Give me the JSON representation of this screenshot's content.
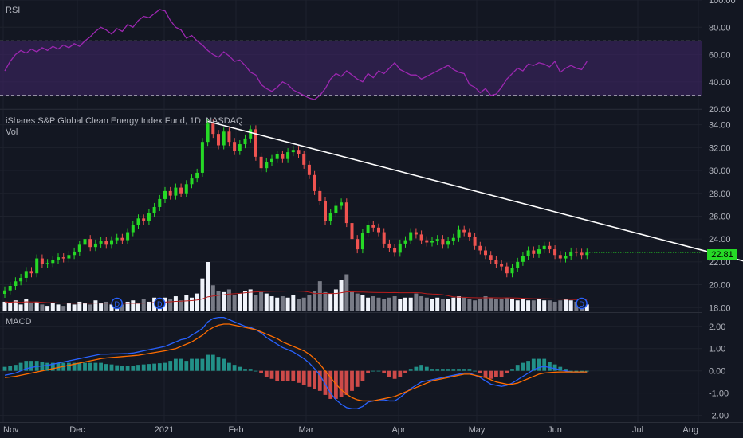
{
  "symbol_title": "iShares S&P Global Clean Energy Index Fund, 1D, NASDAQ",
  "volume_label": "Vol",
  "rsi_label": "RSI",
  "macd_label": "MACD",
  "last_price_label": "22.81",
  "colors": {
    "background": "#131722",
    "grid": "#1e222d",
    "up": "#26d926",
    "down": "#ef5350",
    "rsi_line": "#9c27b0",
    "rsi_band": "#3a2360",
    "macd_line": "#2962ff",
    "signal_line": "#ff6d00",
    "hist_up": "#26a69a",
    "hist_down": "#ef5350",
    "trendline": "#ffffff",
    "vol_ma": "#b71c1c"
  },
  "chart_data": [
    {
      "type": "line",
      "name": "RSI",
      "y_ticks": [
        "100.00",
        "80.00",
        "60.00",
        "40.00",
        "20.00"
      ],
      "ylim": [
        20,
        100
      ],
      "bands": [
        30,
        70
      ],
      "series": [
        {
          "values": [
            48,
            55,
            60,
            63,
            61,
            64,
            62,
            65,
            63,
            66,
            64,
            67,
            65,
            68,
            66,
            70,
            73,
            77,
            80,
            78,
            75,
            79,
            77,
            82,
            80,
            85,
            88,
            87,
            90,
            93,
            92,
            85,
            80,
            78,
            72,
            74,
            70,
            67,
            63,
            60,
            58,
            62,
            59,
            55,
            56,
            52,
            47,
            45,
            38,
            35,
            33,
            36,
            40,
            38,
            34,
            32,
            30,
            28,
            27,
            30,
            35,
            42,
            46,
            44,
            48,
            45,
            42,
            40,
            46,
            43,
            48,
            46,
            50,
            54,
            49,
            47,
            45,
            45,
            42,
            44,
            46,
            48,
            50,
            52,
            49,
            47,
            46,
            38,
            36,
            32,
            35,
            30,
            31,
            36,
            42,
            46,
            50,
            48,
            53,
            52,
            54,
            53,
            51,
            55,
            47,
            50,
            52,
            50,
            49,
            55
          ]
        }
      ]
    },
    {
      "type": "candlestick",
      "name": "iShares S&P Global Clean Energy Index Fund",
      "x_tick_labels": [
        "Nov",
        "Dec",
        "2021",
        "Feb",
        "Mar",
        "Apr",
        "May",
        "Jun",
        "Jul",
        "Aug"
      ],
      "y_ticks": [
        "34.00",
        "32.00",
        "30.00",
        "28.00",
        "26.00",
        "24.00",
        "22.00",
        "20.00",
        "18.00"
      ],
      "ylim": [
        17.6,
        35.3
      ],
      "close": [
        19.5,
        19.9,
        20.3,
        20.6,
        21.2,
        21.0,
        22.3,
        21.8,
        21.9,
        22.2,
        22.4,
        22.3,
        22.6,
        22.9,
        23.5,
        24.0,
        23.3,
        23.6,
        23.8,
        23.5,
        23.9,
        24.1,
        23.9,
        24.6,
        25.2,
        25.8,
        25.6,
        26.3,
        26.8,
        27.5,
        28.2,
        27.8,
        28.5,
        28.0,
        28.8,
        29.3,
        29.8,
        32.5,
        34.1,
        33.2,
        32.2,
        33.4,
        32.5,
        31.7,
        32.3,
        32.8,
        33.6,
        31.2,
        30.2,
        30.7,
        31.0,
        31.4,
        31.0,
        31.6,
        31.8,
        31.4,
        30.5,
        29.6,
        28.2,
        27.3,
        25.6,
        26.3,
        26.9,
        27.2,
        25.4,
        24.0,
        23.1,
        24.5,
        25.2,
        25.0,
        24.6,
        23.6,
        23.2,
        22.8,
        23.6,
        23.9,
        24.6,
        24.4,
        23.9,
        23.7,
        23.8,
        24.0,
        23.5,
        23.8,
        24.1,
        24.8,
        24.6,
        24.2,
        23.4,
        23.0,
        22.6,
        22.2,
        21.8,
        21.6,
        21.0,
        21.5,
        22.0,
        22.5,
        23.0,
        22.7,
        23.1,
        23.4,
        23.1,
        22.6,
        22.3,
        22.5,
        22.9,
        22.8,
        22.6,
        22.81
      ],
      "volume": [
        0.7,
        0.6,
        0.8,
        0.5,
        0.9,
        0.6,
        0.7,
        0.5,
        0.4,
        0.6,
        0.5,
        0.4,
        0.6,
        0.5,
        0.7,
        0.6,
        0.5,
        0.8,
        0.6,
        0.7,
        0.5,
        0.6,
        0.5,
        0.7,
        0.8,
        0.6,
        0.9,
        0.7,
        1.0,
        0.8,
        1.0,
        0.9,
        1.1,
        0.8,
        1.2,
        1.0,
        1.3,
        2.4,
        3.6,
        1.9,
        1.5,
        1.4,
        1.6,
        1.2,
        1.3,
        1.5,
        1.6,
        1.2,
        1.4,
        1.3,
        1.1,
        1.0,
        1.1,
        1.0,
        1.2,
        0.9,
        1.0,
        1.2,
        1.5,
        2.2,
        1.4,
        1.3,
        1.6,
        2.3,
        2.7,
        1.5,
        1.3,
        1.2,
        1.0,
        1.1,
        1.0,
        0.9,
        1.0,
        1.1,
        0.9,
        1.0,
        1.0,
        1.3,
        1.1,
        1.0,
        0.9,
        1.0,
        0.9,
        0.9,
        1.0,
        1.1,
        1.0,
        0.9,
        0.8,
        0.9,
        1.1,
        1.0,
        0.9,
        0.9,
        1.0,
        0.9,
        0.8,
        0.9,
        0.8,
        0.8,
        0.9,
        0.8,
        0.8,
        0.7,
        0.8,
        0.9,
        0.8,
        0.7,
        0.6,
        0.5
      ],
      "trendline": [
        [
          38,
          34.3
        ],
        [
          157,
          19.8
        ]
      ],
      "last_price": 22.81
    },
    {
      "type": "line",
      "name": "MACD",
      "y_ticks": [
        "2.00",
        "1.00",
        "0.00",
        "-1.00",
        "-2.00"
      ],
      "ylim": [
        -2.3,
        2.6
      ],
      "series": [
        {
          "values": [
            -0.2,
            -0.15,
            -0.1,
            0.0,
            0.1,
            0.15,
            0.2,
            0.22,
            0.25,
            0.3,
            0.35,
            0.4,
            0.45,
            0.5,
            0.55,
            0.6,
            0.65,
            0.7,
            0.75,
            0.75,
            0.76,
            0.76,
            0.77,
            0.78,
            0.8,
            0.85,
            0.9,
            0.95,
            1.0,
            1.05,
            1.1,
            1.2,
            1.3,
            1.4,
            1.45,
            1.6,
            1.75,
            1.9,
            2.2,
            2.35,
            2.4,
            2.4,
            2.3,
            2.2,
            2.1,
            2.0,
            1.95,
            1.85,
            1.7,
            1.5,
            1.35,
            1.2,
            1.05,
            0.95,
            0.85,
            0.7,
            0.55,
            0.35,
            0.1,
            -0.2,
            -0.6,
            -1.0,
            -1.3,
            -1.5,
            -1.65,
            -1.7,
            -1.7,
            -1.6,
            -1.4,
            -1.35,
            -1.3,
            -1.3,
            -1.35,
            -1.35,
            -1.2,
            -1.0,
            -0.8,
            -0.65,
            -0.5,
            -0.45,
            -0.4,
            -0.35,
            -0.3,
            -0.25,
            -0.2,
            -0.15,
            -0.1,
            -0.1,
            -0.2,
            -0.3,
            -0.45,
            -0.6,
            -0.65,
            -0.7,
            -0.65,
            -0.55,
            -0.4,
            -0.25,
            -0.1,
            0.05,
            0.15,
            0.2,
            0.15,
            0.1,
            0.05,
            0.0,
            -0.05,
            -0.05,
            -0.05,
            -0.05
          ]
        },
        {
          "values": [
            -0.3,
            -0.28,
            -0.25,
            -0.2,
            -0.15,
            -0.1,
            -0.05,
            0.0,
            0.05,
            0.1,
            0.15,
            0.2,
            0.25,
            0.3,
            0.35,
            0.4,
            0.45,
            0.5,
            0.55,
            0.58,
            0.6,
            0.62,
            0.64,
            0.66,
            0.68,
            0.7,
            0.74,
            0.78,
            0.82,
            0.86,
            0.9,
            0.95,
            1.0,
            1.1,
            1.2,
            1.3,
            1.45,
            1.6,
            1.8,
            1.95,
            2.05,
            2.1,
            2.1,
            2.05,
            2.0,
            1.95,
            1.9,
            1.85,
            1.75,
            1.65,
            1.55,
            1.45,
            1.3,
            1.2,
            1.1,
            1.0,
            0.9,
            0.75,
            0.55,
            0.3,
            0.0,
            -0.3,
            -0.6,
            -0.85,
            -1.05,
            -1.2,
            -1.3,
            -1.35,
            -1.35,
            -1.35,
            -1.3,
            -1.25,
            -1.2,
            -1.15,
            -1.05,
            -0.95,
            -0.85,
            -0.75,
            -0.65,
            -0.55,
            -0.45,
            -0.4,
            -0.35,
            -0.3,
            -0.25,
            -0.2,
            -0.15,
            -0.15,
            -0.2,
            -0.25,
            -0.3,
            -0.4,
            -0.5,
            -0.55,
            -0.6,
            -0.6,
            -0.55,
            -0.45,
            -0.35,
            -0.25,
            -0.15,
            -0.1,
            -0.08,
            -0.06,
            -0.05,
            -0.05,
            -0.05,
            -0.05,
            -0.05,
            -0.05
          ]
        }
      ]
    }
  ]
}
